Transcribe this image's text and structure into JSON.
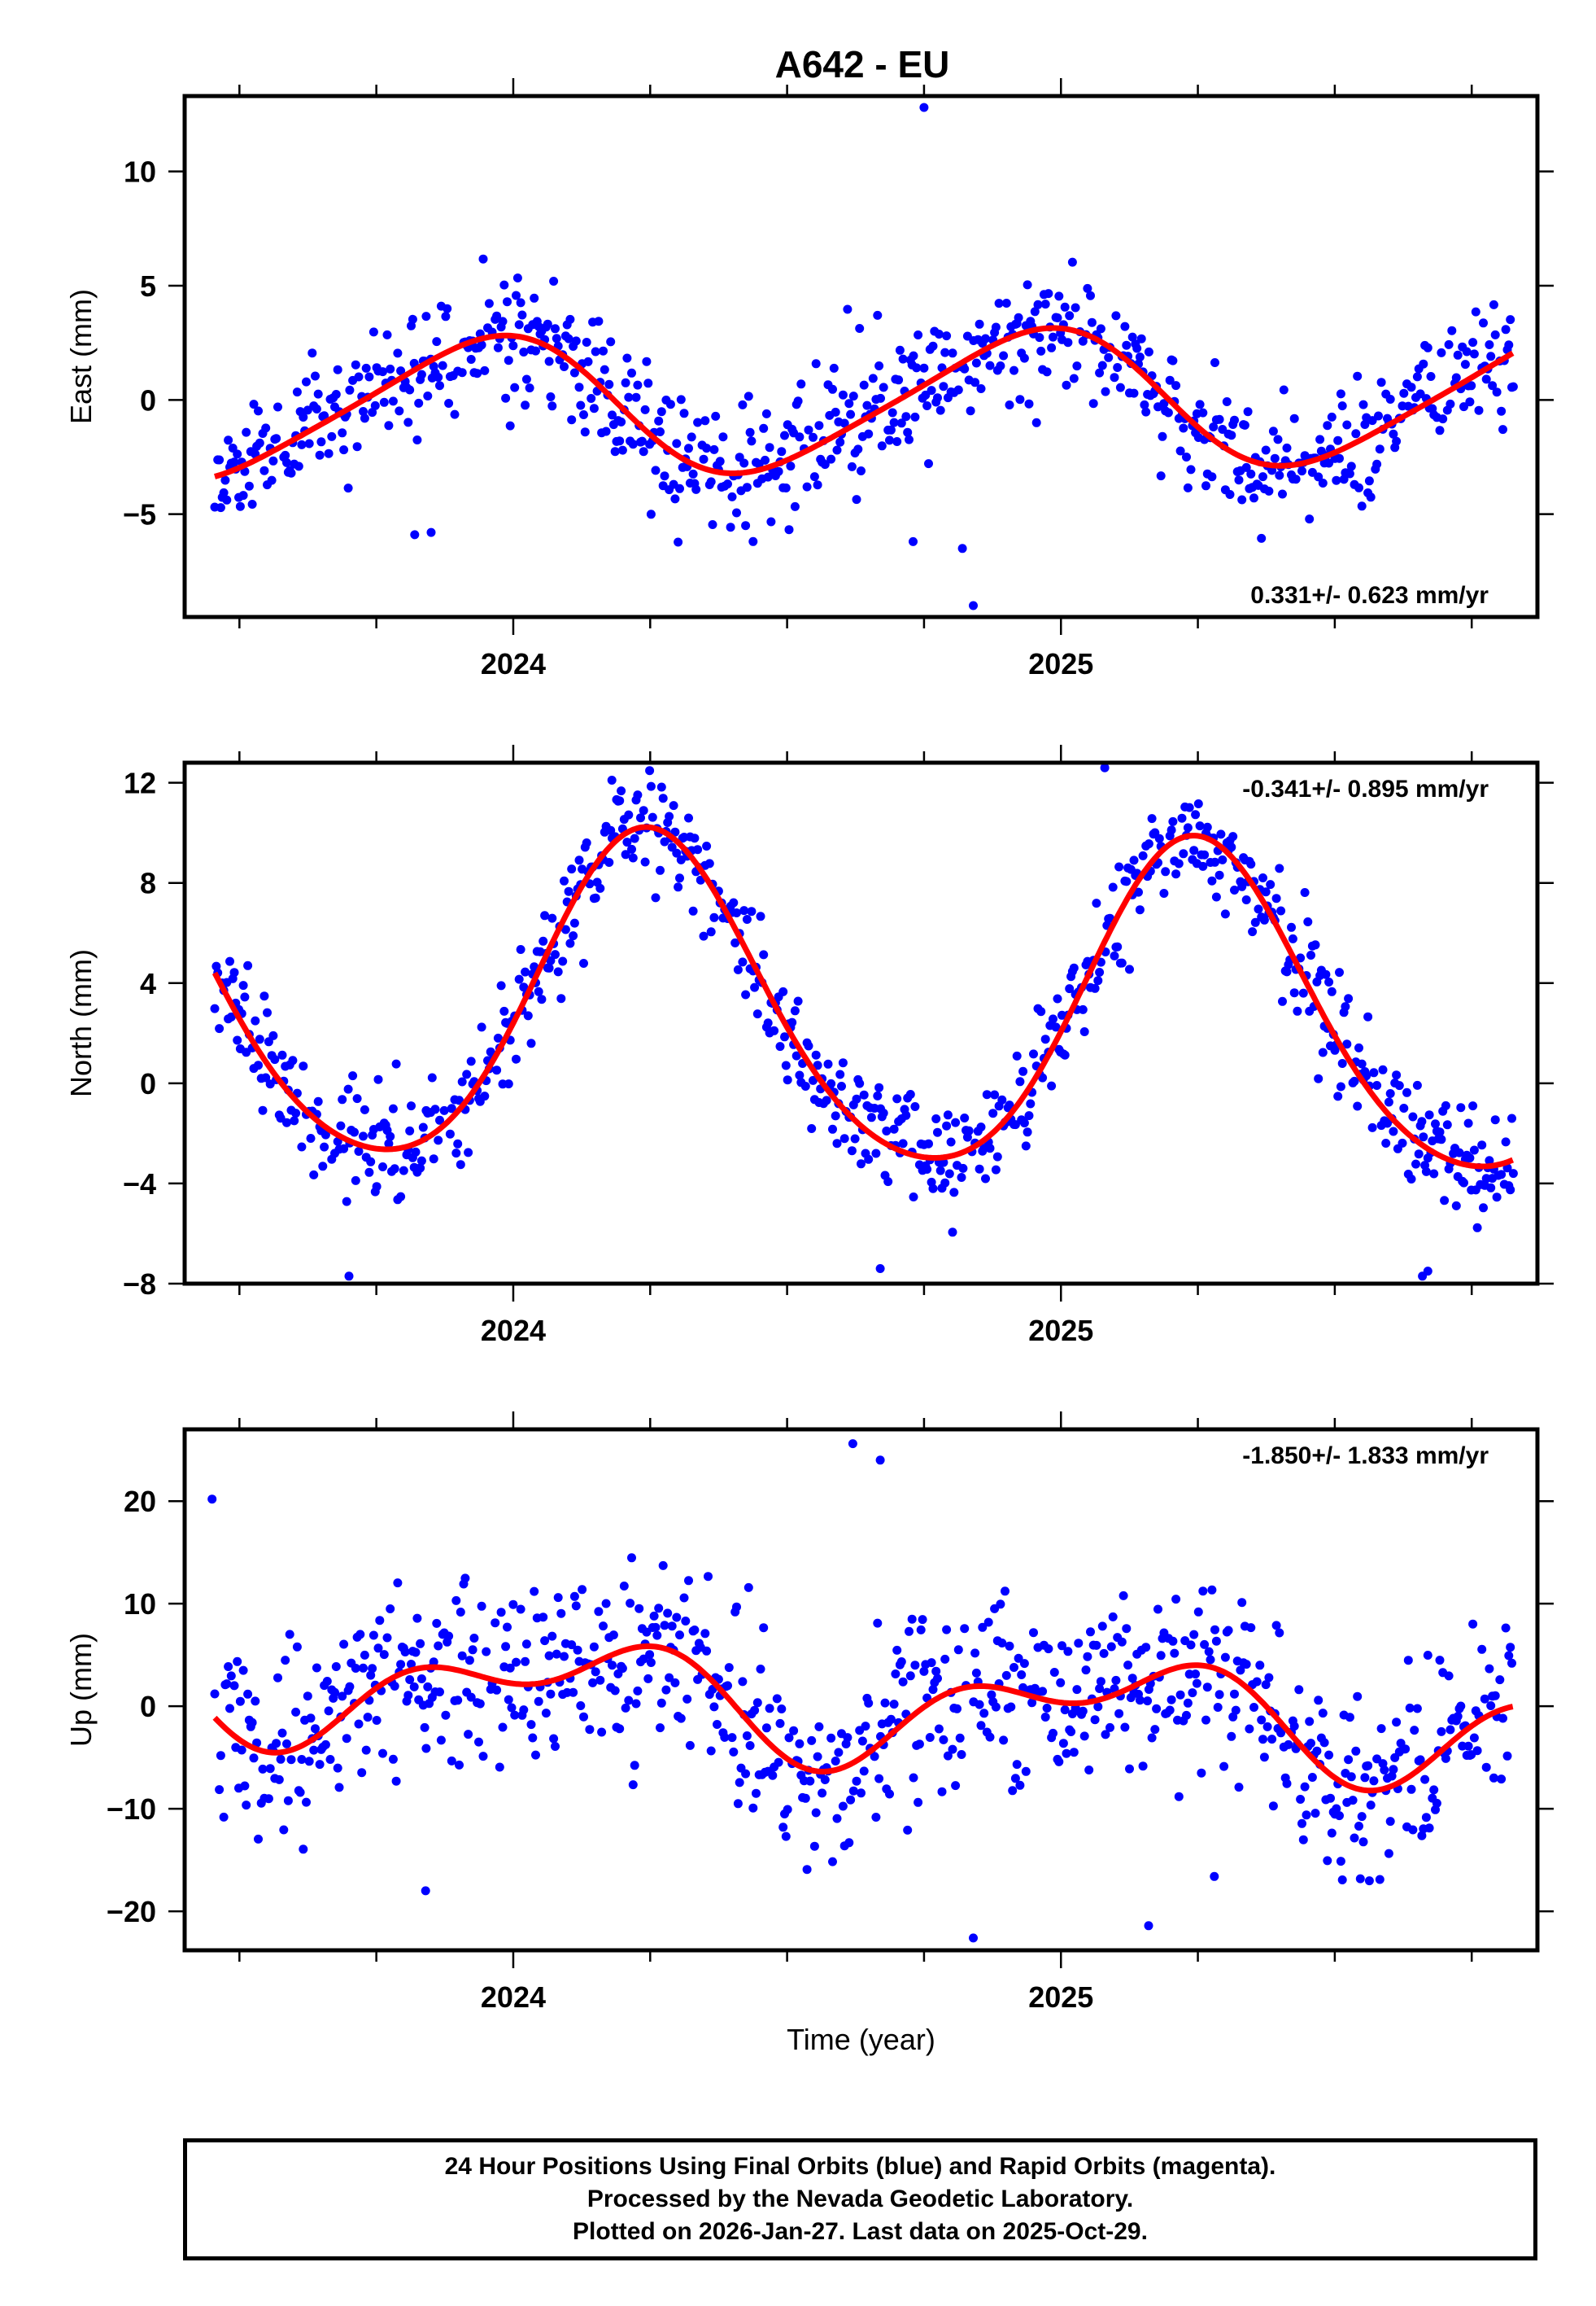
{
  "chart_data": [
    {
      "type": "scatter",
      "title": "A642 - EU",
      "ylabel": "East (mm)",
      "xlabel": "",
      "xlim": [
        2023.4,
        2025.87
      ],
      "ylim": [
        -9.5,
        13.3
      ],
      "xticks": [
        2024,
        2025
      ],
      "xtick_labels": [
        "2024",
        "2025"
      ],
      "yticks": [
        -5,
        0,
        5,
        10
      ],
      "ytick_labels": [
        "−5",
        "0",
        "5",
        "10"
      ],
      "rate_label": "0.331+/- 0.623 mm/yr",
      "rate_position": "bottom-right",
      "fit": {
        "offset": -0.1,
        "trend": 0.331,
        "annual": [
          -1.0,
          2.8
        ],
        "semiannual": [
          0.3,
          0.3
        ]
      },
      "scatter": {
        "noise": 1.4,
        "seed": 11
      },
      "series": [
        {
          "name": "Final Orbits",
          "color": "#0000ff"
        },
        {
          "name": "Model fit",
          "color": "#ff0000"
        }
      ],
      "outliers": [
        [
          2024.75,
          12.8
        ],
        [
          2024.84,
          -9.0
        ],
        [
          2024.82,
          -6.5
        ],
        [
          2024.73,
          -6.2
        ],
        [
          2023.85,
          -5.8
        ],
        [
          2023.82,
          -5.9
        ]
      ]
    },
    {
      "type": "scatter",
      "title": "",
      "ylabel": "North (mm)",
      "xlabel": "",
      "xlim": [
        2023.4,
        2025.87
      ],
      "ylim": [
        -8.0,
        12.8
      ],
      "xticks": [
        2024,
        2025
      ],
      "xtick_labels": [
        "2024",
        "2025"
      ],
      "yticks": [
        -8,
        -4,
        0,
        4,
        8,
        12
      ],
      "ytick_labels": [
        "−8",
        "−4",
        "0",
        "4",
        "8",
        "12"
      ],
      "rate_label": "-0.341+/- 0.895 mm/yr",
      "rate_position": "top-right",
      "fit": {
        "offset": 2.9,
        "trend": -0.341,
        "annual": [
          6.5,
          0.0
        ],
        "semiannual": [
          0.2,
          -0.7
        ]
      },
      "scatter": {
        "noise": 1.1,
        "seed": 23
      },
      "series": [
        {
          "name": "Final Orbits",
          "color": "#0000ff"
        },
        {
          "name": "Model fit",
          "color": "#ff0000"
        }
      ],
      "outliers": [
        [
          2025.08,
          12.6
        ],
        [
          2024.18,
          12.1
        ],
        [
          2023.7,
          -7.7
        ],
        [
          2024.67,
          -7.4
        ],
        [
          2025.66,
          -7.7
        ],
        [
          2025.67,
          -7.5
        ]
      ]
    },
    {
      "type": "scatter",
      "title": "",
      "ylabel": "Up (mm)",
      "xlabel": "Time (year)",
      "xlim": [
        2023.4,
        2025.87
      ],
      "ylim": [
        -23.8,
        27.0
      ],
      "xticks": [
        2024,
        2025
      ],
      "xtick_labels": [
        "2024",
        "2025"
      ],
      "yticks": [
        -20,
        -10,
        0,
        10,
        20
      ],
      "ytick_labels": [
        "−20",
        "−10",
        "0",
        "10",
        "20"
      ],
      "rate_label": "-1.850+/- 1.833 mm/yr",
      "rate_position": "top-right",
      "fit": {
        "offset": 0.3,
        "trend": -1.85,
        "annual": [
          2.5,
          3.2
        ],
        "semiannual": [
          -1.6,
          -2.4
        ]
      },
      "scatter": {
        "noise": 4.3,
        "seed": 37
      },
      "series": [
        {
          "name": "Final Orbits",
          "color": "#0000ff"
        },
        {
          "name": "Model fit",
          "color": "#ff0000"
        }
      ],
      "outliers": [
        [
          2024.62,
          25.6
        ],
        [
          2024.67,
          24.0
        ],
        [
          2023.45,
          20.2
        ],
        [
          2024.84,
          -22.6
        ],
        [
          2025.16,
          -21.4
        ],
        [
          2023.84,
          -18.0
        ],
        [
          2025.28,
          -16.6
        ]
      ]
    }
  ],
  "footer": {
    "line1": "24 Hour Positions Using Final Orbits (blue) and Rapid Orbits (magenta).",
    "line2": "Processed by the Nevada Geodetic Laboratory.",
    "line3": "Plotted on 2026-Jan-27. Last data on 2025-Oct-29."
  }
}
